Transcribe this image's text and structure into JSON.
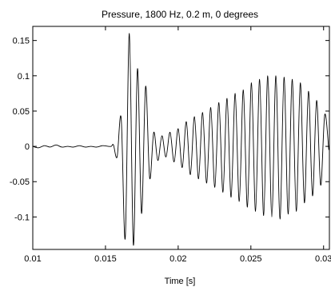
{
  "chart_data": {
    "type": "line",
    "title": "Pressure, 1800 Hz, 0.2 m, 0 degrees",
    "xlabel": "Time [s]",
    "ylabel": "",
    "xlim": [
      0.01,
      0.0304
    ],
    "ylim": [
      -0.146,
      0.17
    ],
    "x_ticks": [
      0.01,
      0.015,
      0.02,
      0.025,
      0.03
    ],
    "x_tick_labels": [
      "0.01",
      "0.015",
      "0.02",
      "0.025",
      "0.03"
    ],
    "y_ticks": [
      -0.1,
      -0.05,
      0,
      0.05,
      0.1,
      0.15
    ],
    "y_tick_labels": [
      "-0.1",
      "-0.05",
      "0",
      "0.05",
      "0.1",
      "0.15"
    ],
    "grid": false,
    "line_color": "#000000",
    "series": [
      {
        "x": [
          0.01,
          0.0104,
          0.0108,
          0.0112,
          0.0116,
          0.012,
          0.0124,
          0.0128,
          0.0132,
          0.0136,
          0.014,
          0.0144,
          0.0148,
          0.0152,
          0.0154,
          0.01555,
          0.0158,
          0.01608,
          0.01636,
          0.01664,
          0.01692,
          0.0172,
          0.01748,
          0.01776,
          0.01804,
          0.01832,
          0.0186,
          0.01888,
          0.01916,
          0.01944,
          0.01972,
          0.02,
          0.02028,
          0.02056,
          0.02084,
          0.02112,
          0.0214,
          0.02168,
          0.02196,
          0.02224,
          0.02252,
          0.0228,
          0.02308,
          0.02336,
          0.02364,
          0.02392,
          0.0242,
          0.02448,
          0.02476,
          0.02504,
          0.02532,
          0.0256,
          0.02588,
          0.02616,
          0.02644,
          0.02672,
          0.027,
          0.02728,
          0.02756,
          0.02784,
          0.02812,
          0.0284,
          0.02868,
          0.02896,
          0.02924,
          0.02952,
          0.0298,
          0.03008,
          0.03036
        ],
        "y": [
          0.0,
          -0.002,
          0.001,
          -0.001,
          0.002,
          -0.001,
          0.0,
          -0.001,
          0.001,
          -0.001,
          0.0,
          -0.001,
          0.001,
          0.0,
          0.0,
          0.002,
          -0.015,
          0.04,
          -0.13,
          0.16,
          -0.14,
          0.11,
          -0.095,
          0.085,
          -0.045,
          0.02,
          -0.02,
          0.015,
          -0.015,
          0.02,
          -0.022,
          0.025,
          -0.03,
          0.035,
          -0.04,
          0.042,
          -0.046,
          0.048,
          -0.052,
          0.055,
          -0.058,
          0.062,
          -0.065,
          0.068,
          -0.072,
          0.075,
          -0.078,
          0.08,
          -0.086,
          0.09,
          -0.092,
          0.095,
          -0.098,
          0.1,
          -0.1,
          0.1,
          -0.103,
          0.098,
          -0.096,
          0.095,
          -0.092,
          0.09,
          -0.08,
          0.078,
          -0.07,
          0.065,
          -0.055,
          0.045,
          -0.005
        ]
      }
    ]
  }
}
